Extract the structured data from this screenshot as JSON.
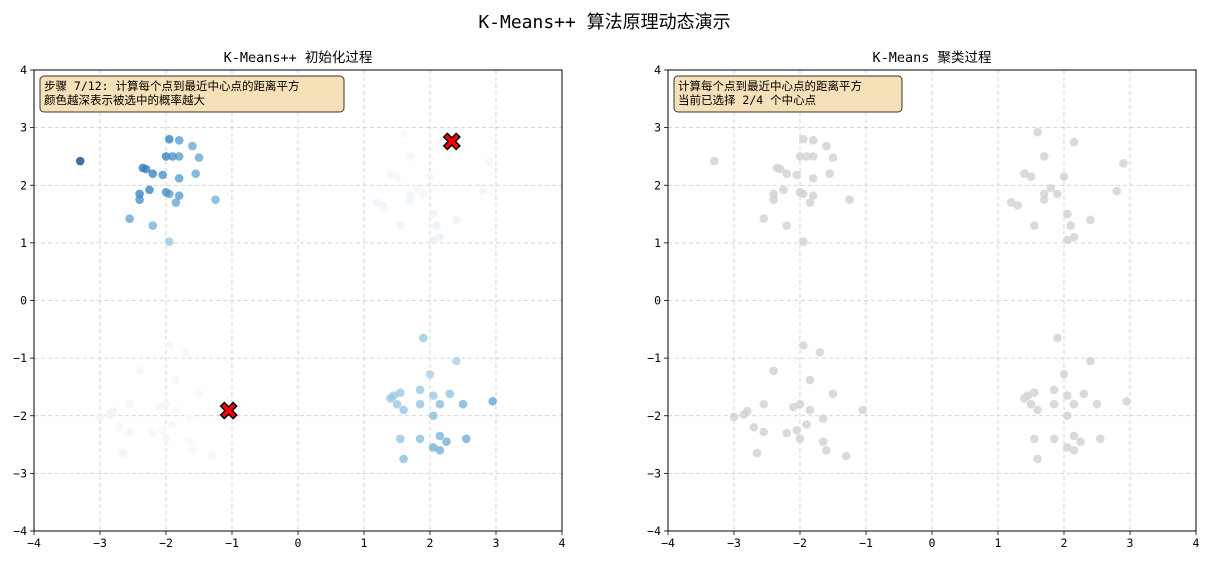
{
  "title": "K-Means++ 算法原理动态演示",
  "colors": {
    "background": "#ffffff",
    "grid": "#c8c8c8",
    "point_gray": "#d3d3d3",
    "center_fill": "#ff0000",
    "center_edge": "#000000",
    "info_box_fill": "#f5deb3",
    "colormap": "Blues"
  },
  "chart_data": [
    {
      "type": "scatter",
      "title": "K-Means++ 初始化过程",
      "xlim": [
        -4,
        4
      ],
      "ylim": [
        -4,
        4
      ],
      "xticks": [
        -4,
        -3,
        -2,
        -1,
        0,
        1,
        2,
        3,
        4
      ],
      "yticks": [
        -4,
        -3,
        -2,
        -1,
        0,
        1,
        2,
        3,
        4
      ],
      "xtick_labels": [
        "−4",
        "−3",
        "−2",
        "−1",
        "0",
        "1",
        "2",
        "3",
        "4"
      ],
      "ytick_labels": [
        "−4",
        "−3",
        "−2",
        "−1",
        "0",
        "1",
        "2",
        "3",
        "4"
      ],
      "grid": true,
      "info_lines": [
        "步骤 7/12: 计算每个点到最近中心点的距离平方",
        "颜色越深表示被选中的概率越大"
      ],
      "color_encoding": "squared distance to nearest center",
      "centers": [
        [
          2.33,
          2.76
        ],
        [
          -1.05,
          -1.91
        ]
      ],
      "center_marker": "X",
      "points": [
        [
          -3.3,
          2.42,
          0.95
        ],
        [
          -2.35,
          2.3,
          0.75
        ],
        [
          -2.3,
          2.28,
          0.7
        ],
        [
          -2.0,
          2.5,
          0.7
        ],
        [
          -1.95,
          2.8,
          0.7
        ],
        [
          -1.8,
          2.78,
          0.6
        ],
        [
          -1.6,
          2.68,
          0.55
        ],
        [
          -1.9,
          2.5,
          0.65
        ],
        [
          -1.8,
          2.5,
          0.6
        ],
        [
          -1.5,
          2.48,
          0.55
        ],
        [
          -2.2,
          2.2,
          0.7
        ],
        [
          -2.05,
          2.18,
          0.65
        ],
        [
          -1.8,
          2.12,
          0.6
        ],
        [
          -1.55,
          2.2,
          0.55
        ],
        [
          -2.4,
          1.85,
          0.7
        ],
        [
          -2.25,
          1.92,
          0.7
        ],
        [
          -2.0,
          1.88,
          0.65
        ],
        [
          -1.95,
          1.85,
          0.6
        ],
        [
          -1.8,
          1.82,
          0.6
        ],
        [
          -2.4,
          1.75,
          0.65
        ],
        [
          -1.85,
          1.7,
          0.55
        ],
        [
          -1.25,
          1.75,
          0.5
        ],
        [
          -2.55,
          1.42,
          0.55
        ],
        [
          -2.2,
          1.3,
          0.5
        ],
        [
          -1.95,
          1.02,
          0.4
        ],
        [
          1.6,
          2.9,
          0.02
        ],
        [
          2.15,
          2.75,
          0.02
        ],
        [
          1.7,
          2.5,
          0.03
        ],
        [
          2.9,
          2.4,
          0.04
        ],
        [
          1.4,
          2.2,
          0.04
        ],
        [
          1.5,
          2.15,
          0.04
        ],
        [
          2.0,
          2.15,
          0.04
        ],
        [
          1.8,
          1.95,
          0.05
        ],
        [
          1.9,
          1.85,
          0.05
        ],
        [
          2.8,
          1.9,
          0.05
        ],
        [
          1.7,
          1.75,
          0.06
        ],
        [
          2.05,
          1.5,
          0.07
        ],
        [
          2.4,
          1.4,
          0.07
        ],
        [
          1.55,
          1.3,
          0.07
        ],
        [
          2.1,
          1.3,
          0.08
        ],
        [
          2.15,
          1.1,
          0.09
        ],
        [
          2.05,
          1.05,
          0.09
        ],
        [
          1.2,
          1.7,
          0.06
        ],
        [
          1.3,
          1.65,
          0.06
        ],
        [
          1.7,
          1.85,
          0.05
        ],
        [
          -1.95,
          -0.78,
          0.05
        ],
        [
          -1.7,
          -0.9,
          0.04
        ],
        [
          -2.4,
          -1.22,
          0.04
        ],
        [
          -1.5,
          -1.62,
          0.03
        ],
        [
          -1.85,
          -1.38,
          0.04
        ],
        [
          -2.1,
          -1.85,
          0.03
        ],
        [
          -2.0,
          -1.8,
          0.03
        ],
        [
          -1.85,
          -1.9,
          0.02
        ],
        [
          -2.85,
          -1.98,
          0.06
        ],
        [
          -3.0,
          -2.02,
          0.06
        ],
        [
          -2.8,
          -1.92,
          0.06
        ],
        [
          -2.55,
          -1.8,
          0.05
        ],
        [
          -1.65,
          -2.05,
          0.02
        ],
        [
          -1.9,
          -2.15,
          0.02
        ],
        [
          -2.7,
          -2.2,
          0.05
        ],
        [
          -2.05,
          -2.25,
          0.02
        ],
        [
          -1.65,
          -2.45,
          0.03
        ],
        [
          -2.0,
          -2.4,
          0.03
        ],
        [
          -2.2,
          -2.3,
          0.04
        ],
        [
          -2.55,
          -2.28,
          0.05
        ],
        [
          -1.6,
          -2.6,
          0.03
        ],
        [
          -2.65,
          -2.65,
          0.06
        ],
        [
          -1.3,
          -2.7,
          0.03
        ],
        [
          -1.05,
          -1.9,
          0.01
        ],
        [
          1.9,
          -0.65,
          0.4
        ],
        [
          2.4,
          -1.05,
          0.35
        ],
        [
          2.0,
          -1.28,
          0.35
        ],
        [
          1.55,
          -1.6,
          0.4
        ],
        [
          1.85,
          -1.55,
          0.4
        ],
        [
          2.05,
          -1.65,
          0.4
        ],
        [
          2.3,
          -1.62,
          0.42
        ],
        [
          1.5,
          -1.8,
          0.4
        ],
        [
          1.6,
          -1.9,
          0.42
        ],
        [
          1.85,
          -1.8,
          0.42
        ],
        [
          2.15,
          -1.8,
          0.45
        ],
        [
          2.5,
          -1.8,
          0.48
        ],
        [
          2.95,
          -1.75,
          0.55
        ],
        [
          1.4,
          -1.7,
          0.4
        ],
        [
          2.05,
          -2.0,
          0.45
        ],
        [
          1.45,
          -1.65,
          0.4
        ],
        [
          1.55,
          -2.4,
          0.42
        ],
        [
          1.85,
          -2.4,
          0.45
        ],
        [
          2.15,
          -2.35,
          0.48
        ],
        [
          2.25,
          -2.45,
          0.5
        ],
        [
          2.55,
          -2.4,
          0.52
        ],
        [
          2.05,
          -2.55,
          0.5
        ],
        [
          2.15,
          -2.6,
          0.5
        ],
        [
          1.6,
          -2.75,
          0.45
        ]
      ]
    },
    {
      "type": "scatter",
      "title": "K-Means 聚类过程",
      "xlim": [
        -4,
        4
      ],
      "ylim": [
        -4,
        4
      ],
      "xticks": [
        -4,
        -3,
        -2,
        -1,
        0,
        1,
        2,
        3,
        4
      ],
      "yticks": [
        -4,
        -3,
        -2,
        -1,
        0,
        1,
        2,
        3,
        4
      ],
      "xtick_labels": [
        "−4",
        "−3",
        "−2",
        "−1",
        "0",
        "1",
        "2",
        "3",
        "4"
      ],
      "ytick_labels": [
        "−4",
        "−3",
        "−2",
        "−1",
        "0",
        "1",
        "2",
        "3",
        "4"
      ],
      "grid": true,
      "info_lines": [
        "计算每个点到最近中心点的距离平方",
        "当前已选择 2/4 个中心点"
      ],
      "point_color": "#d3d3d3",
      "points": [
        [
          -3.3,
          2.42
        ],
        [
          -1.95,
          2.8
        ],
        [
          -1.8,
          2.78
        ],
        [
          -1.6,
          2.68
        ],
        [
          -2.35,
          2.3
        ],
        [
          -2.3,
          2.28
        ],
        [
          -2.0,
          2.5
        ],
        [
          -1.9,
          2.5
        ],
        [
          -1.8,
          2.5
        ],
        [
          -1.5,
          2.48
        ],
        [
          -2.2,
          2.2
        ],
        [
          -2.05,
          2.18
        ],
        [
          -1.8,
          2.12
        ],
        [
          -1.55,
          2.2
        ],
        [
          -2.4,
          1.85
        ],
        [
          -2.25,
          1.92
        ],
        [
          -2.0,
          1.88
        ],
        [
          -1.95,
          1.85
        ],
        [
          -1.8,
          1.82
        ],
        [
          -2.4,
          1.75
        ],
        [
          -1.85,
          1.7
        ],
        [
          -1.25,
          1.75
        ],
        [
          -2.55,
          1.42
        ],
        [
          -2.2,
          1.3
        ],
        [
          -1.95,
          1.02
        ],
        [
          1.6,
          2.92
        ],
        [
          2.15,
          2.75
        ],
        [
          1.7,
          2.5
        ],
        [
          2.9,
          2.38
        ],
        [
          1.4,
          2.2
        ],
        [
          1.5,
          2.15
        ],
        [
          2.0,
          2.15
        ],
        [
          1.8,
          1.95
        ],
        [
          1.9,
          1.85
        ],
        [
          2.8,
          1.9
        ],
        [
          1.7,
          1.75
        ],
        [
          2.05,
          1.5
        ],
        [
          2.4,
          1.4
        ],
        [
          1.55,
          1.3
        ],
        [
          2.1,
          1.3
        ],
        [
          2.15,
          1.1
        ],
        [
          2.05,
          1.05
        ],
        [
          1.2,
          1.7
        ],
        [
          1.3,
          1.65
        ],
        [
          1.7,
          1.85
        ],
        [
          -1.95,
          -0.78
        ],
        [
          -1.7,
          -0.9
        ],
        [
          -2.4,
          -1.22
        ],
        [
          -1.5,
          -1.62
        ],
        [
          -1.85,
          -1.38
        ],
        [
          -2.1,
          -1.85
        ],
        [
          -2.0,
          -1.8
        ],
        [
          -1.85,
          -1.9
        ],
        [
          -2.85,
          -1.98
        ],
        [
          -3.0,
          -2.02
        ],
        [
          -2.8,
          -1.92
        ],
        [
          -2.55,
          -1.8
        ],
        [
          -1.65,
          -2.05
        ],
        [
          -1.9,
          -2.15
        ],
        [
          -2.7,
          -2.2
        ],
        [
          -2.05,
          -2.25
        ],
        [
          -1.65,
          -2.45
        ],
        [
          -2.0,
          -2.4
        ],
        [
          -2.2,
          -2.3
        ],
        [
          -2.55,
          -2.28
        ],
        [
          -1.6,
          -2.6
        ],
        [
          -2.65,
          -2.65
        ],
        [
          -1.3,
          -2.7
        ],
        [
          -1.05,
          -1.9
        ],
        [
          1.9,
          -0.65
        ],
        [
          2.4,
          -1.05
        ],
        [
          2.0,
          -1.28
        ],
        [
          1.55,
          -1.6
        ],
        [
          1.85,
          -1.55
        ],
        [
          2.05,
          -1.65
        ],
        [
          2.3,
          -1.62
        ],
        [
          1.5,
          -1.8
        ],
        [
          1.6,
          -1.9
        ],
        [
          1.85,
          -1.8
        ],
        [
          2.15,
          -1.8
        ],
        [
          2.5,
          -1.8
        ],
        [
          2.95,
          -1.75
        ],
        [
          1.4,
          -1.7
        ],
        [
          2.05,
          -2.0
        ],
        [
          1.45,
          -1.65
        ],
        [
          1.55,
          -2.4
        ],
        [
          1.85,
          -2.4
        ],
        [
          2.15,
          -2.35
        ],
        [
          2.25,
          -2.45
        ],
        [
          2.55,
          -2.4
        ],
        [
          2.05,
          -2.55
        ],
        [
          2.15,
          -2.6
        ],
        [
          1.6,
          -2.75
        ]
      ]
    }
  ]
}
